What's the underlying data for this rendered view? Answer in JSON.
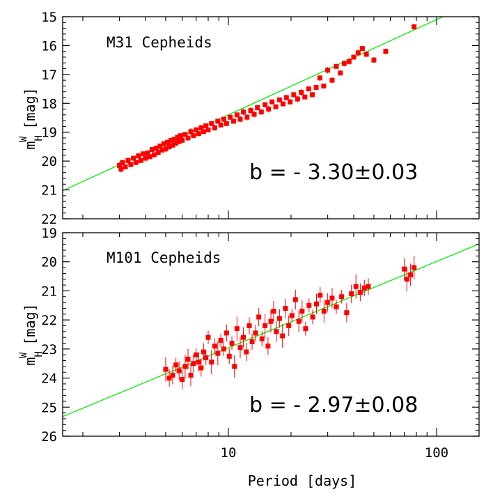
{
  "xlabel": "Period [days]",
  "x_tick_labels": [
    "10",
    "100"
  ],
  "chart_data": [
    {
      "type": "scatter",
      "title": "M31 Cepheids",
      "ylabel": "m_H^W [mag]",
      "ylabel_parts": {
        "base": "m",
        "sup": "W",
        "sub": "H",
        "unit": "[mag]"
      },
      "xscale": "log",
      "xlim": [
        1.6,
        160
      ],
      "ylim": [
        22,
        15
      ],
      "y_ticks": [
        "15",
        "16",
        "17",
        "18",
        "19",
        "20",
        "21",
        "22"
      ],
      "fit_line": {
        "slope": -3.3,
        "intercept": 21.7,
        "color": "#00ee00"
      },
      "annotation": "b = - 3.30±0.03",
      "point_color": "#ff0000",
      "points": [
        {
          "period": 3.0,
          "mag": 20.15
        },
        {
          "period": 3.05,
          "mag": 20.28
        },
        {
          "period": 3.1,
          "mag": 20.05
        },
        {
          "period": 3.2,
          "mag": 20.2
        },
        {
          "period": 3.3,
          "mag": 19.98
        },
        {
          "period": 3.4,
          "mag": 20.12
        },
        {
          "period": 3.5,
          "mag": 19.9
        },
        {
          "period": 3.6,
          "mag": 20.05
        },
        {
          "period": 3.7,
          "mag": 19.82
        },
        {
          "period": 3.8,
          "mag": 19.98
        },
        {
          "period": 3.9,
          "mag": 19.75
        },
        {
          "period": 4.0,
          "mag": 19.9
        },
        {
          "period": 4.1,
          "mag": 19.72
        },
        {
          "period": 4.2,
          "mag": 19.85
        },
        {
          "period": 4.3,
          "mag": 19.6
        },
        {
          "period": 4.4,
          "mag": 19.78
        },
        {
          "period": 4.5,
          "mag": 19.55
        },
        {
          "period": 4.6,
          "mag": 19.7
        },
        {
          "period": 4.7,
          "mag": 19.48
        },
        {
          "period": 4.8,
          "mag": 19.62
        },
        {
          "period": 4.9,
          "mag": 19.4
        },
        {
          "period": 5.0,
          "mag": 19.58
        },
        {
          "period": 5.1,
          "mag": 19.35
        },
        {
          "period": 5.2,
          "mag": 19.5
        },
        {
          "period": 5.3,
          "mag": 19.28
        },
        {
          "period": 5.4,
          "mag": 19.45
        },
        {
          "period": 5.5,
          "mag": 19.25
        },
        {
          "period": 5.6,
          "mag": 19.38
        },
        {
          "period": 5.7,
          "mag": 19.18
        },
        {
          "period": 5.8,
          "mag": 19.32
        },
        {
          "period": 5.9,
          "mag": 19.12
        },
        {
          "period": 6.0,
          "mag": 19.28
        },
        {
          "period": 6.2,
          "mag": 19.08
        },
        {
          "period": 6.4,
          "mag": 19.2
        },
        {
          "period": 6.6,
          "mag": 18.98
        },
        {
          "period": 6.8,
          "mag": 19.12
        },
        {
          "period": 7.0,
          "mag": 18.92
        },
        {
          "period": 7.2,
          "mag": 19.05
        },
        {
          "period": 7.4,
          "mag": 18.85
        },
        {
          "period": 7.6,
          "mag": 18.98
        },
        {
          "period": 7.8,
          "mag": 18.78
        },
        {
          "period": 8.0,
          "mag": 18.92
        },
        {
          "period": 8.3,
          "mag": 18.7
        },
        {
          "period": 8.6,
          "mag": 18.85
        },
        {
          "period": 8.9,
          "mag": 18.62
        },
        {
          "period": 9.2,
          "mag": 18.75
        },
        {
          "period": 9.5,
          "mag": 18.55
        },
        {
          "period": 9.8,
          "mag": 18.7
        },
        {
          "period": 10.2,
          "mag": 18.48
        },
        {
          "period": 10.6,
          "mag": 18.62
        },
        {
          "period": 11.0,
          "mag": 18.4
        },
        {
          "period": 11.4,
          "mag": 18.55
        },
        {
          "period": 11.8,
          "mag": 18.3
        },
        {
          "period": 12.3,
          "mag": 18.48
        },
        {
          "period": 12.8,
          "mag": 18.25
        },
        {
          "period": 13.3,
          "mag": 18.38
        },
        {
          "period": 13.8,
          "mag": 18.15
        },
        {
          "period": 14.4,
          "mag": 18.3
        },
        {
          "period": 15.0,
          "mag": 18.05
        },
        {
          "period": 15.6,
          "mag": 18.2
        },
        {
          "period": 16.2,
          "mag": 17.95
        },
        {
          "period": 16.9,
          "mag": 18.12
        },
        {
          "period": 17.6,
          "mag": 17.88
        },
        {
          "period": 18.3,
          "mag": 18.02
        },
        {
          "period": 19.0,
          "mag": 17.8
        },
        {
          "period": 19.8,
          "mag": 17.95
        },
        {
          "period": 20.6,
          "mag": 17.7
        },
        {
          "period": 21.5,
          "mag": 17.85
        },
        {
          "period": 22.4,
          "mag": 17.62
        },
        {
          "period": 23.3,
          "mag": 17.78
        },
        {
          "period": 24.3,
          "mag": 17.5
        },
        {
          "period": 25.3,
          "mag": 17.7
        },
        {
          "period": 26.4,
          "mag": 17.45
        },
        {
          "period": 27.5,
          "mag": 17.12
        },
        {
          "period": 28.7,
          "mag": 17.4
        },
        {
          "period": 30.0,
          "mag": 16.85
        },
        {
          "period": 31.5,
          "mag": 17.2
        },
        {
          "period": 33.0,
          "mag": 16.72
        },
        {
          "period": 34.5,
          "mag": 16.95
        },
        {
          "period": 36.0,
          "mag": 16.62
        },
        {
          "period": 38.0,
          "mag": 16.55
        },
        {
          "period": 40.0,
          "mag": 16.4
        },
        {
          "period": 42.0,
          "mag": 16.25
        },
        {
          "period": 44.0,
          "mag": 16.1
        },
        {
          "period": 46.0,
          "mag": 16.3
        },
        {
          "period": 50.0,
          "mag": 16.5
        },
        {
          "period": 57.0,
          "mag": 16.2
        },
        {
          "period": 78.0,
          "mag": 15.35
        }
      ]
    },
    {
      "type": "scatter",
      "title": "M101 Cepheids",
      "ylabel": "m_H^W [mag]",
      "ylabel_parts": {
        "base": "m",
        "sup": "W",
        "sub": "H",
        "unit": "[mag]"
      },
      "xscale": "log",
      "xlim": [
        1.6,
        160
      ],
      "ylim": [
        26,
        19
      ],
      "y_ticks": [
        "19",
        "20",
        "21",
        "22",
        "23",
        "24",
        "25",
        "26"
      ],
      "fit_line": {
        "slope": -2.97,
        "intercept": 25.93,
        "color": "#00ee00"
      },
      "annotation": "b = - 2.97±0.08",
      "point_color": "#ff0000",
      "points": [
        {
          "period": 5.0,
          "mag": 23.7
        },
        {
          "period": 5.2,
          "mag": 24.0
        },
        {
          "period": 5.4,
          "mag": 23.9
        },
        {
          "period": 5.6,
          "mag": 23.55
        },
        {
          "period": 5.8,
          "mag": 23.75
        },
        {
          "period": 6.0,
          "mag": 24.05
        },
        {
          "period": 6.2,
          "mag": 23.6
        },
        {
          "period": 6.4,
          "mag": 23.35
        },
        {
          "period": 6.6,
          "mag": 23.9
        },
        {
          "period": 6.8,
          "mag": 23.5
        },
        {
          "period": 7.0,
          "mag": 23.2
        },
        {
          "period": 7.2,
          "mag": 23.45
        },
        {
          "period": 7.4,
          "mag": 23.65
        },
        {
          "period": 7.6,
          "mag": 23.1
        },
        {
          "period": 7.8,
          "mag": 23.3
        },
        {
          "period": 8.0,
          "mag": 22.6
        },
        {
          "period": 8.3,
          "mag": 23.45
        },
        {
          "period": 8.6,
          "mag": 22.9
        },
        {
          "period": 8.9,
          "mag": 23.15
        },
        {
          "period": 9.2,
          "mag": 22.7
        },
        {
          "period": 9.5,
          "mag": 23.0
        },
        {
          "period": 9.8,
          "mag": 22.45
        },
        {
          "period": 10.1,
          "mag": 23.25
        },
        {
          "period": 10.4,
          "mag": 22.8
        },
        {
          "period": 10.7,
          "mag": 23.6
        },
        {
          "period": 11.0,
          "mag": 22.3
        },
        {
          "period": 11.4,
          "mag": 22.95
        },
        {
          "period": 11.8,
          "mag": 22.6
        },
        {
          "period": 12.2,
          "mag": 23.1
        },
        {
          "period": 12.6,
          "mag": 22.2
        },
        {
          "period": 13.0,
          "mag": 22.75
        },
        {
          "period": 13.5,
          "mag": 22.45
        },
        {
          "period": 14.0,
          "mag": 21.9
        },
        {
          "period": 14.5,
          "mag": 22.65
        },
        {
          "period": 15.0,
          "mag": 22.2
        },
        {
          "period": 15.5,
          "mag": 22.9
        },
        {
          "period": 16.0,
          "mag": 22.05
        },
        {
          "period": 16.5,
          "mag": 21.7
        },
        {
          "period": 17.0,
          "mag": 22.4
        },
        {
          "period": 17.6,
          "mag": 21.95
        },
        {
          "period": 18.2,
          "mag": 22.55
        },
        {
          "period": 18.8,
          "mag": 21.6
        },
        {
          "period": 19.5,
          "mag": 22.2
        },
        {
          "period": 20.2,
          "mag": 21.85
        },
        {
          "period": 21.0,
          "mag": 21.3
        },
        {
          "period": 21.8,
          "mag": 22.05
        },
        {
          "period": 22.6,
          "mag": 21.7
        },
        {
          "period": 23.5,
          "mag": 22.3
        },
        {
          "period": 24.4,
          "mag": 21.5
        },
        {
          "period": 25.4,
          "mag": 21.9
        },
        {
          "period": 26.5,
          "mag": 21.45
        },
        {
          "period": 27.6,
          "mag": 21.15
        },
        {
          "period": 28.8,
          "mag": 21.7
        },
        {
          "period": 30.0,
          "mag": 21.4
        },
        {
          "period": 31.5,
          "mag": 21.25
        },
        {
          "period": 33.0,
          "mag": 21.55
        },
        {
          "period": 35.0,
          "mag": 21.2
        },
        {
          "period": 37.0,
          "mag": 21.75
        },
        {
          "period": 39.0,
          "mag": 21.1
        },
        {
          "period": 41.0,
          "mag": 20.85
        },
        {
          "period": 43.0,
          "mag": 21.05
        },
        {
          "period": 45.0,
          "mag": 20.9
        },
        {
          "period": 47.0,
          "mag": 20.85
        },
        {
          "period": 70.0,
          "mag": 20.25
        },
        {
          "period": 72.0,
          "mag": 20.6
        },
        {
          "period": 75.0,
          "mag": 20.45
        },
        {
          "period": 78.0,
          "mag": 20.2
        }
      ]
    }
  ]
}
